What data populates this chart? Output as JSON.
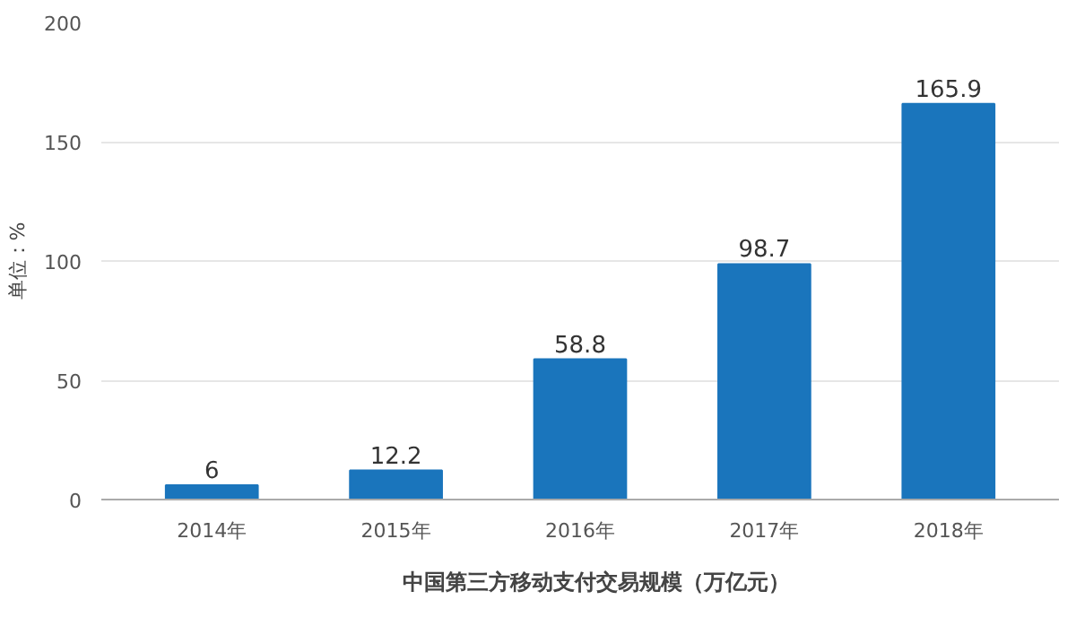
{
  "chart_data": {
    "type": "bar",
    "ylabel": "单位：%",
    "categories": [
      "2014年",
      "2015年",
      "2016年",
      "2017年",
      "2018年"
    ],
    "series": [
      {
        "name": "中国第三方移动支付交易规模（万亿元）",
        "color": "#1a75bc",
        "values": [
          6,
          12.2,
          58.8,
          98.7,
          165.9
        ]
      }
    ],
    "ylim": [
      0,
      200
    ],
    "yticks": [
      0,
      50,
      100,
      150,
      200
    ],
    "grid": "y",
    "legend": "bottom",
    "data_labels": true
  }
}
